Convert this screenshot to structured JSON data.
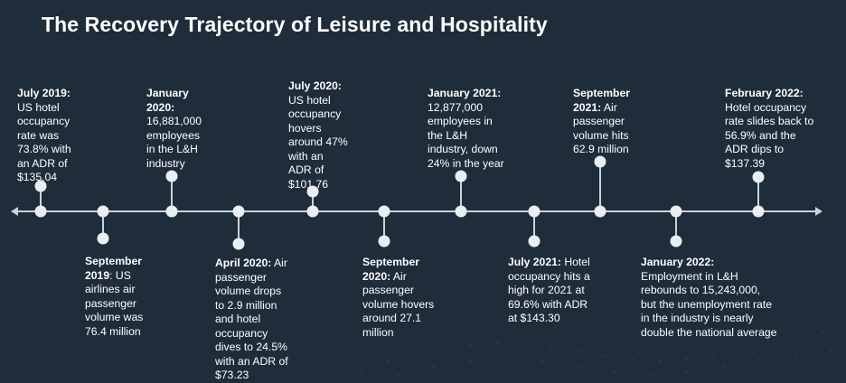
{
  "title": "The Recovery Trajectory of Leisure and Hospitality",
  "events": [
    {
      "id": "jul-2019",
      "date": "July 2019:",
      "text": "US hotel\noccupancy\nrate was\n73.8% with\nan ADR of\n$135.04"
    },
    {
      "id": "sep-2019",
      "date": "September\n2019",
      "text": ": US\nairlines air\npassenger\nvolume was\n76.4 million"
    },
    {
      "id": "jan-2020",
      "date": "January\n2020:",
      "text": "16,881,000\nemployees\nin the L&H\nindustry"
    },
    {
      "id": "apr-2020",
      "date": "April 2020:",
      "text": " Air\npassenger\nvolume drops\nto 2.9 million\nand hotel\noccupancy\ndives to 24.5%\nwith an ADR of\n$73.23"
    },
    {
      "id": "jul-2020",
      "date": "July 2020:",
      "text": "US hotel\noccupancy\nhovers\naround 47%\nwith an\nADR of\n$101.76"
    },
    {
      "id": "sep-2020",
      "date": "September\n2020:",
      "text": " Air\npassenger\nvolume hovers\naround 27.1\nmillion"
    },
    {
      "id": "jan-2021",
      "date": "January 2021:",
      "text": "12,877,000\nemployees in\nthe L&H\nindustry, down\n24% in the year"
    },
    {
      "id": "jul-2021",
      "date": "July 2021:",
      "text": " Hotel\noccupancy hits a\nhigh for 2021 at\n69.6% with ADR\nat $143.30"
    },
    {
      "id": "sep-2021",
      "date": "September\n2021:",
      "text": " Air\npassenger\nvolume hits\n62.9 million"
    },
    {
      "id": "jan-2022",
      "date": "January 2022:",
      "text": "Employment in L&H\nrebounds to 15,243,000,\nbut the unemployment rate\nin the industry is nearly\ndouble the national average"
    },
    {
      "id": "feb-2022",
      "date": "February 2022:",
      "text": "Hotel occupancy\nrate slides back to\n56.9% and the\nADR dips to\n$137.39"
    }
  ]
}
